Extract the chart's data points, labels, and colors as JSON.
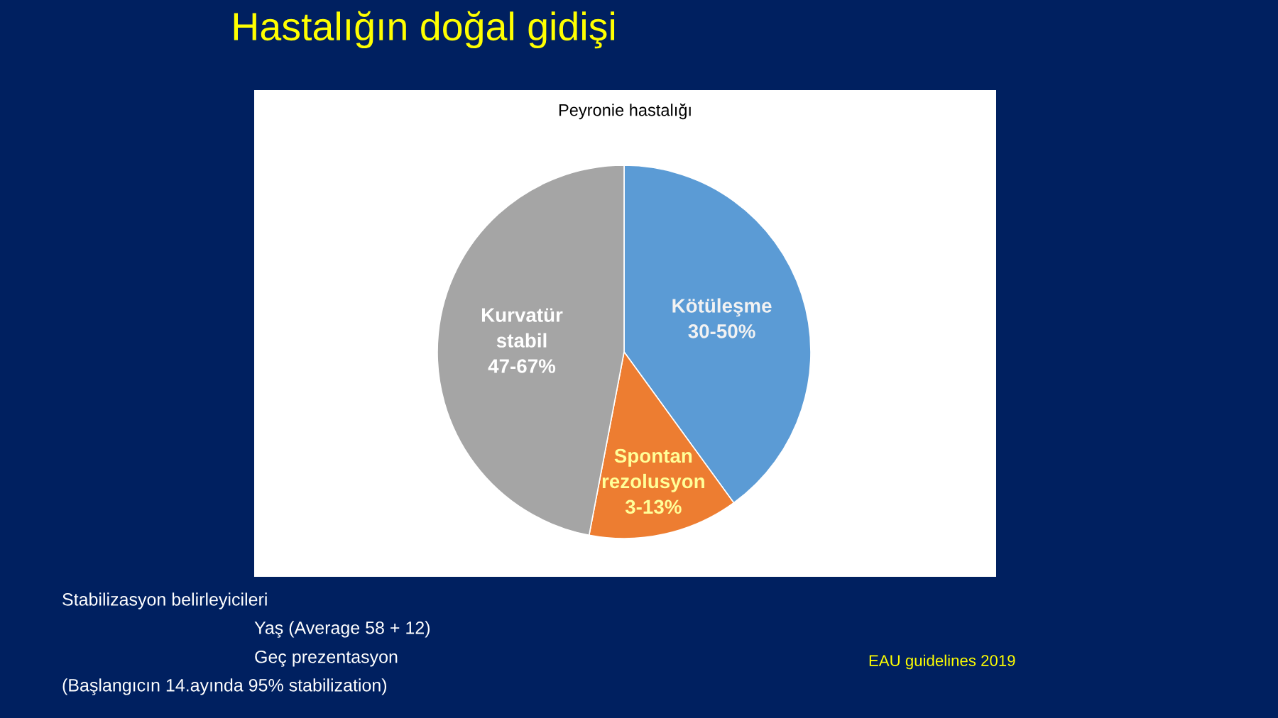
{
  "chart_data": {
    "type": "pie",
    "title": "Hastalığın doğal gidişi",
    "subtitle": "Peyronie hastalığı",
    "categories": [
      "Kötüleşme 30-50%",
      "Spontan rezolusyon 3-13%",
      "Kurvatür stabil 47-67%"
    ],
    "values": [
      40,
      13,
      47
    ],
    "colors": [
      "#5b9bd5",
      "#ed7d31",
      "#a5a5a5"
    ],
    "annotations": [
      "Stabilizasyon belirleyicileri",
      "Yaş (Average 58 + 12)",
      "Geç prezentasyon",
      "(Başlangıcın 14.ayında 95% stabilization)",
      "EAU guidelines 2019"
    ]
  }
}
